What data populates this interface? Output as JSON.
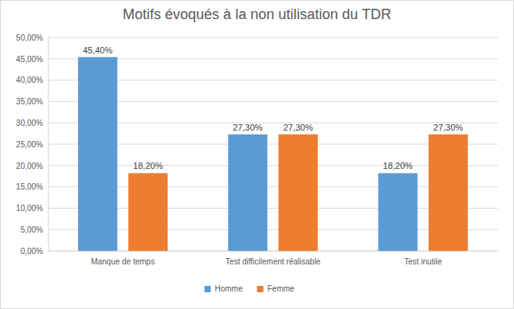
{
  "chart_data": {
    "type": "bar",
    "title": "Motifs évoqués à la non utilisation du TDR",
    "categories": [
      "Manque de temps",
      "Test difficilement réalisable",
      "Test inutile"
    ],
    "series": [
      {
        "name": "Homme",
        "color": "#5b9bd5",
        "values": [
          45.4,
          27.3,
          18.2
        ],
        "value_labels": [
          "45,40%",
          "27,30%",
          "18,20%"
        ]
      },
      {
        "name": "Femme",
        "color": "#ed7d31",
        "values": [
          18.2,
          27.3,
          27.3
        ],
        "value_labels": [
          "18,20%",
          "27,30%",
          "27,30%"
        ]
      }
    ],
    "ylim": [
      0,
      50
    ],
    "yticks": [
      {
        "value": 0,
        "label": "0,00%"
      },
      {
        "value": 5,
        "label": "5,00%"
      },
      {
        "value": 10,
        "label": "10,00%"
      },
      {
        "value": 15,
        "label": "15,00%"
      },
      {
        "value": 20,
        "label": "20,00%"
      },
      {
        "value": 25,
        "label": "25,00%"
      },
      {
        "value": 30,
        "label": "30,00%"
      },
      {
        "value": 35,
        "label": "35,00%"
      },
      {
        "value": 40,
        "label": "40,00%"
      },
      {
        "value": 45,
        "label": "45,00%"
      },
      {
        "value": 50,
        "label": "50,00%"
      }
    ],
    "grid": true,
    "legend": "bottom",
    "data_labels": true
  }
}
